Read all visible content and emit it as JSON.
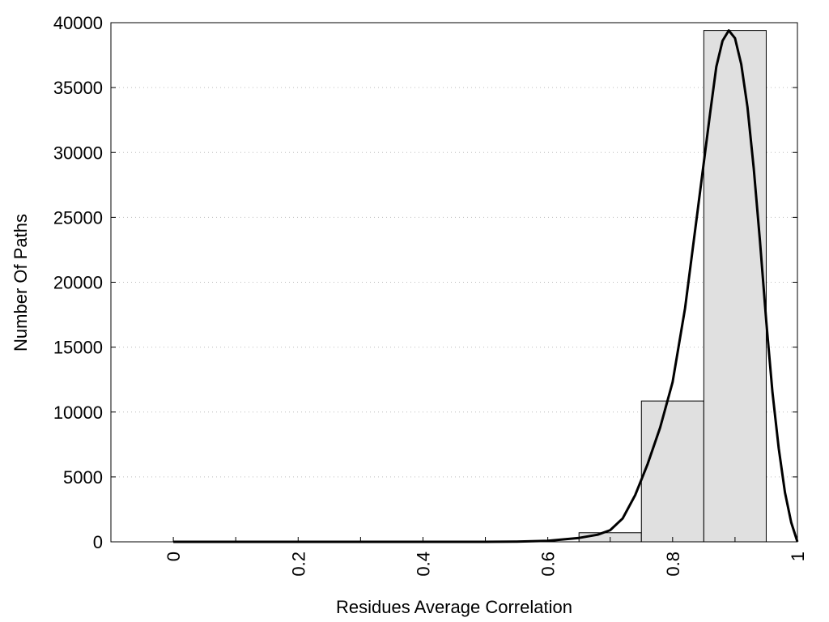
{
  "chart_data": {
    "type": "bar",
    "title": "",
    "xlabel": "Residues Average Correlation",
    "ylabel": "Number Of Paths",
    "xlim": [
      -0.1,
      1.0
    ],
    "ylim": [
      0,
      40000
    ],
    "x_ticks": [
      0,
      0.1,
      0.2,
      0.3,
      0.4,
      0.5,
      0.6,
      0.7,
      0.8,
      0.9,
      1.0
    ],
    "x_tick_labels": [
      {
        "value": 0,
        "label": "0"
      },
      {
        "value": 0.2,
        "label": "0.2"
      },
      {
        "value": 0.4,
        "label": "0.4"
      },
      {
        "value": 0.6,
        "label": "0.6"
      },
      {
        "value": 0.8,
        "label": "0.8"
      },
      {
        "value": 1.0,
        "label": "1"
      }
    ],
    "y_ticks": [
      0,
      5000,
      10000,
      15000,
      20000,
      25000,
      30000,
      35000,
      40000
    ],
    "y_tick_labels": [
      "0",
      "5000",
      "10000",
      "15000",
      "20000",
      "25000",
      "30000",
      "35000",
      "40000"
    ],
    "grid": {
      "horizontal": true,
      "vertical": false
    },
    "bars": [
      {
        "x": 0.0,
        "width": 0.1,
        "value": 0
      },
      {
        "x": 0.1,
        "width": 0.1,
        "value": 0
      },
      {
        "x": 0.2,
        "width": 0.1,
        "value": 0
      },
      {
        "x": 0.3,
        "width": 0.1,
        "value": 0
      },
      {
        "x": 0.4,
        "width": 0.1,
        "value": 0
      },
      {
        "x": 0.5,
        "width": 0.1,
        "value": 0
      },
      {
        "x": 0.6,
        "width": 0.1,
        "value": 0
      },
      {
        "x": 0.7,
        "width": 0.1,
        "value": 700
      },
      {
        "x": 0.8,
        "width": 0.1,
        "value": 10850
      },
      {
        "x": 0.9,
        "width": 0.1,
        "value": 39400
      }
    ],
    "fit_curve": {
      "x": [
        0.0,
        0.1,
        0.2,
        0.3,
        0.4,
        0.5,
        0.55,
        0.6,
        0.65,
        0.68,
        0.7,
        0.72,
        0.74,
        0.76,
        0.78,
        0.8,
        0.82,
        0.84,
        0.86,
        0.87,
        0.88,
        0.89,
        0.9,
        0.91,
        0.92,
        0.93,
        0.94,
        0.95,
        0.96,
        0.97,
        0.98,
        0.99,
        1.0
      ],
      "y": [
        0,
        0,
        0,
        0,
        0,
        0,
        20,
        80,
        300,
        550,
        900,
        1800,
        3600,
        6000,
        8800,
        12300,
        18000,
        25500,
        33000,
        36600,
        38600,
        39400,
        38800,
        36800,
        33500,
        28800,
        23200,
        17000,
        11500,
        7200,
        3800,
        1500,
        0
      ]
    }
  }
}
